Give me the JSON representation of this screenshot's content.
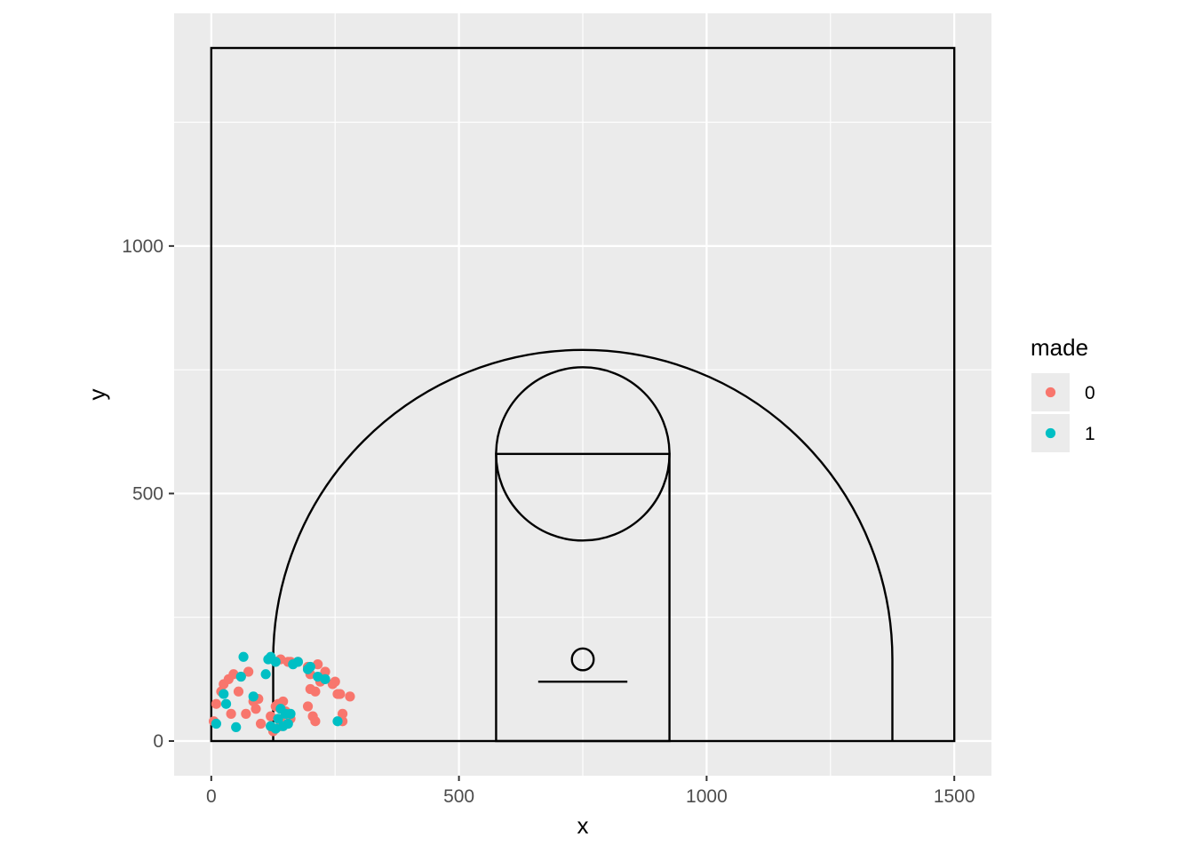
{
  "chart_data": {
    "type": "scatter",
    "title": "",
    "xlabel": "x",
    "ylabel": "y",
    "xlim": [
      -75,
      1575
    ],
    "ylim": [
      -70,
      1470
    ],
    "x_ticks": [
      0,
      500,
      1000,
      1500
    ],
    "y_ticks": [
      0,
      500,
      1000
    ],
    "x_tick_labels": [
      "0",
      "500",
      "1000",
      "1500"
    ],
    "y_tick_labels": [
      "0",
      "500",
      "1000"
    ],
    "grid": true,
    "legend": {
      "title": "made",
      "position": "right",
      "entries": [
        {
          "label": "0",
          "color": "#F8766D"
        },
        {
          "label": "1",
          "color": "#00BFC4"
        }
      ]
    },
    "court_lines": {
      "boundary": {
        "x": [
          0,
          1500
        ],
        "y": [
          0,
          1400
        ]
      },
      "paint": {
        "x": [
          575,
          925
        ],
        "y": [
          0,
          580
        ]
      },
      "free_throw_circle": {
        "cx": 750,
        "cy": 580,
        "r": 175
      },
      "hoop": {
        "cx": 750,
        "cy": 165,
        "r": 22
      },
      "backboard": {
        "x": [
          660,
          840
        ],
        "y": 120
      },
      "three_point_corners": {
        "x": [
          125,
          1375
        ],
        "y": [
          0,
          165
        ]
      },
      "three_point_arc": {
        "cx": 750,
        "cy": 165,
        "r": 625
      }
    },
    "series": [
      {
        "name": "0",
        "color": "#F8766D",
        "points": [
          [
            5,
            40
          ],
          [
            10,
            75
          ],
          [
            20,
            100
          ],
          [
            25,
            115
          ],
          [
            35,
            125
          ],
          [
            40,
            55
          ],
          [
            45,
            135
          ],
          [
            55,
            100
          ],
          [
            60,
            130
          ],
          [
            70,
            55
          ],
          [
            75,
            140
          ],
          [
            85,
            80
          ],
          [
            90,
            65
          ],
          [
            95,
            85
          ],
          [
            100,
            35
          ],
          [
            120,
            50
          ],
          [
            125,
            20
          ],
          [
            130,
            70
          ],
          [
            135,
            75
          ],
          [
            140,
            40
          ],
          [
            145,
            80
          ],
          [
            150,
            60
          ],
          [
            160,
            45
          ],
          [
            140,
            165
          ],
          [
            155,
            160
          ],
          [
            175,
            160
          ],
          [
            195,
            150
          ],
          [
            200,
            135
          ],
          [
            210,
            100
          ],
          [
            215,
            155
          ],
          [
            220,
            120
          ],
          [
            230,
            140
          ],
          [
            245,
            115
          ],
          [
            250,
            120
          ],
          [
            255,
            95
          ],
          [
            260,
            95
          ],
          [
            265,
            55
          ],
          [
            265,
            40
          ],
          [
            195,
            70
          ],
          [
            200,
            105
          ],
          [
            205,
            50
          ],
          [
            210,
            40
          ],
          [
            280,
            90
          ],
          [
            160,
            160
          ],
          [
            120,
            30
          ],
          [
            140,
            30
          ]
        ]
      },
      {
        "name": "1",
        "color": "#00BFC4",
        "points": [
          [
            10,
            35
          ],
          [
            25,
            95
          ],
          [
            30,
            75
          ],
          [
            50,
            28
          ],
          [
            60,
            130
          ],
          [
            65,
            170
          ],
          [
            85,
            90
          ],
          [
            110,
            135
          ],
          [
            115,
            165
          ],
          [
            120,
            170
          ],
          [
            130,
            160
          ],
          [
            135,
            45
          ],
          [
            140,
            65
          ],
          [
            145,
            30
          ],
          [
            150,
            55
          ],
          [
            155,
            35
          ],
          [
            160,
            55
          ],
          [
            165,
            155
          ],
          [
            175,
            160
          ],
          [
            195,
            145
          ],
          [
            200,
            150
          ],
          [
            215,
            130
          ],
          [
            230,
            125
          ],
          [
            255,
            40
          ],
          [
            120,
            30
          ],
          [
            130,
            25
          ]
        ]
      }
    ]
  }
}
